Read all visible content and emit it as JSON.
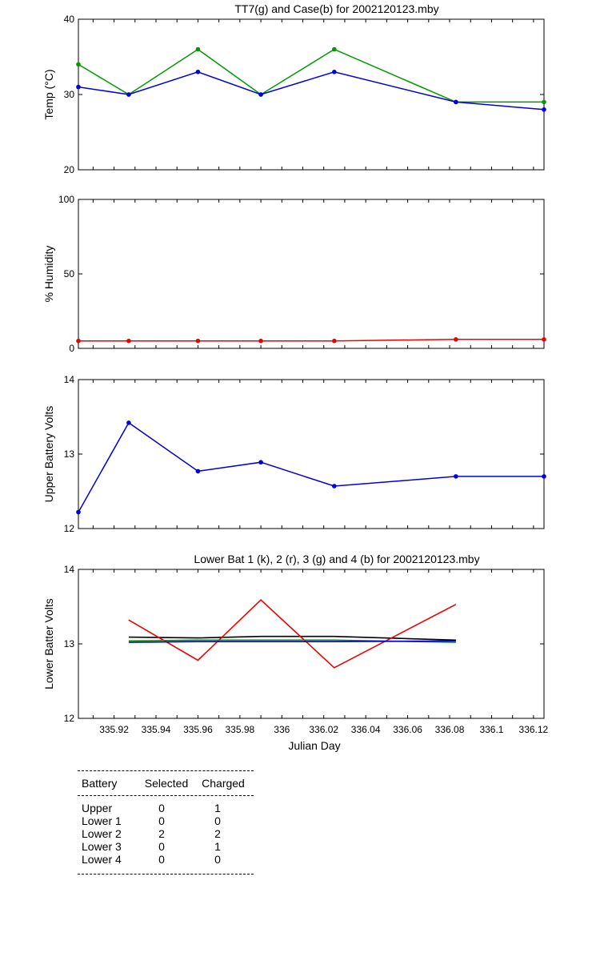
{
  "chart_data": [
    {
      "type": "line",
      "title": "TT7(g) and Case(b) for 2002120123.mby",
      "ylabel": "Temp (°C)",
      "xlabel": "",
      "xlim": [
        335.903,
        336.125
      ],
      "ylim": [
        20,
        40
      ],
      "yticks": [
        "20",
        "30",
        "40"
      ],
      "show_xtick_labels": false,
      "series": [
        {
          "color": "#009900",
          "markers": true,
          "x": [
            335.903,
            335.927,
            335.96,
            335.99,
            336.025,
            336.083,
            336.125
          ],
          "y": [
            34,
            30,
            36,
            30,
            36,
            29,
            29
          ]
        },
        {
          "color": "#0000dd",
          "markers": true,
          "x": [
            335.903,
            335.927,
            335.96,
            335.99,
            336.025,
            336.083,
            336.125
          ],
          "y": [
            31,
            30,
            33,
            30,
            33,
            29,
            28
          ]
        }
      ]
    },
    {
      "type": "line",
      "title": "",
      "ylabel": "% Humidity",
      "xlabel": "",
      "xlim": [
        335.903,
        336.125
      ],
      "ylim": [
        0,
        100
      ],
      "yticks": [
        "0",
        "50",
        "100"
      ],
      "show_xtick_labels": false,
      "series": [
        {
          "color": "#ee0000",
          "markers": true,
          "x": [
            335.903,
            335.927,
            335.96,
            335.99,
            336.025,
            336.083,
            336.125
          ],
          "y": [
            5,
            5,
            5,
            5,
            5,
            6,
            6
          ]
        }
      ]
    },
    {
      "type": "line",
      "title": "",
      "ylabel": "Upper Battery Volts",
      "xlabel": "",
      "xlim": [
        335.903,
        336.125
      ],
      "ylim": [
        12,
        14
      ],
      "yticks": [
        "12",
        "13",
        "14"
      ],
      "show_xtick_labels": false,
      "series": [
        {
          "color": "#0000dd",
          "markers": true,
          "x": [
            335.903,
            335.927,
            335.96,
            335.99,
            336.025,
            336.083,
            336.125
          ],
          "y": [
            12.22,
            13.42,
            12.77,
            12.89,
            12.57,
            12.7,
            12.7
          ]
        }
      ]
    },
    {
      "type": "line",
      "title": "Lower Bat 1 (k), 2 (r), 3 (g) and 4 (b) for 2002120123.mby",
      "ylabel": "Lower Batter Volts",
      "xlabel": "Julian Day",
      "xlim": [
        335.903,
        336.125
      ],
      "ylim": [
        12,
        14
      ],
      "yticks": [
        "12",
        "13",
        "14"
      ],
      "show_xtick_labels": true,
      "xticks": [
        335.92,
        335.94,
        335.96,
        335.98,
        336,
        336.02,
        336.04,
        336.06,
        336.08,
        336.1,
        336.12
      ],
      "xtick_labels": [
        "335.92",
        "335.94",
        "335.96",
        "335.98",
        "336",
        "336.02",
        "336.04",
        "336.06",
        "336.08",
        "336.1",
        "336.12"
      ],
      "series": [
        {
          "color": "#000000",
          "markers": false,
          "x": [
            335.927,
            335.96,
            335.99,
            336.025,
            336.083
          ],
          "y": [
            13.09,
            13.08,
            13.1,
            13.1,
            13.05
          ]
        },
        {
          "color": "#ee0000",
          "markers": false,
          "x": [
            335.927,
            335.96,
            335.99,
            336.025,
            336.083
          ],
          "y": [
            13.32,
            12.78,
            13.59,
            12.68,
            13.53
          ]
        },
        {
          "color": "#009900",
          "markers": false,
          "x": [
            335.927,
            335.96,
            335.99,
            336.025,
            336.083
          ],
          "y": [
            13.04,
            13.05,
            13.05,
            13.05,
            13.02
          ]
        },
        {
          "color": "#0000dd",
          "markers": false,
          "x": [
            335.927,
            335.96,
            335.99,
            336.025,
            336.083
          ],
          "y": [
            13.02,
            13.03,
            13.03,
            13.03,
            13.04
          ]
        }
      ]
    }
  ],
  "summary_table": {
    "headers": [
      "Battery",
      "Selected",
      "Charged"
    ],
    "rows": [
      [
        "Upper",
        "0",
        "1"
      ],
      [
        "Lower 1",
        "0",
        "0"
      ],
      [
        "Lower 2",
        "2",
        "2"
      ],
      [
        "Lower 3",
        "0",
        "1"
      ],
      [
        "Lower 4",
        "0",
        "0"
      ]
    ]
  }
}
